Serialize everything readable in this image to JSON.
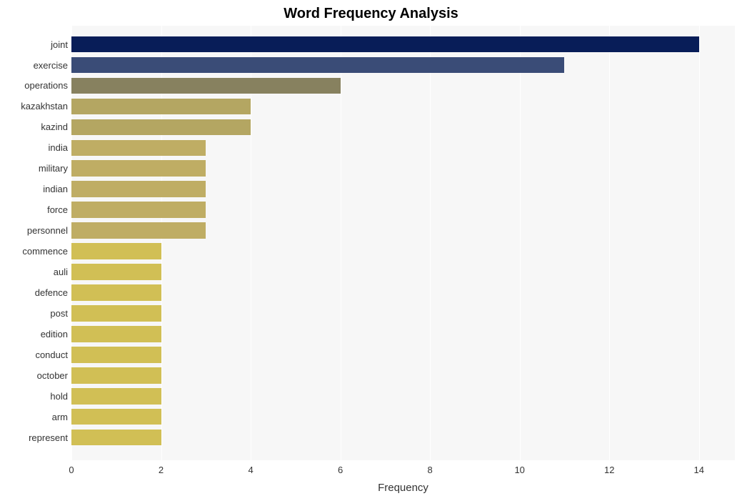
{
  "chart": {
    "type": "bar-horizontal",
    "title": "Word Frequency Analysis",
    "title_fontsize": 20,
    "title_fontweight": "bold",
    "title_color": "#000000",
    "xlabel": "Frequency",
    "xlabel_fontsize": 15,
    "ylabel_fontsize": 13,
    "xtick_fontsize": 13,
    "background_color": "#ffffff",
    "plot_background_color": "#f7f7f7",
    "grid_color": "#ffffff",
    "xlim": [
      0,
      14.8
    ],
    "xtick_step": 2,
    "xticks": [
      0,
      2,
      4,
      6,
      8,
      10,
      12,
      14
    ],
    "bar_fill_ratio": 0.78,
    "categories": [
      "joint",
      "exercise",
      "operations",
      "kazakhstan",
      "kazind",
      "india",
      "military",
      "indian",
      "force",
      "personnel",
      "commence",
      "auli",
      "defence",
      "post",
      "edition",
      "conduct",
      "october",
      "hold",
      "arm",
      "represent"
    ],
    "values": [
      14,
      11,
      6,
      4,
      4,
      3,
      3,
      3,
      3,
      3,
      2,
      2,
      2,
      2,
      2,
      2,
      2,
      2,
      2,
      2
    ],
    "bar_colors": [
      "#081d58",
      "#3a4c77",
      "#87815f",
      "#b4a662",
      "#b4a662",
      "#bfad64",
      "#bfad64",
      "#bfad64",
      "#bfad64",
      "#bfad64",
      "#d1bf55",
      "#d1bf55",
      "#d1bf55",
      "#d1bf55",
      "#d1bf55",
      "#d1bf55",
      "#d1bf55",
      "#d1bf55",
      "#d1bf55",
      "#d1bf55"
    ]
  }
}
